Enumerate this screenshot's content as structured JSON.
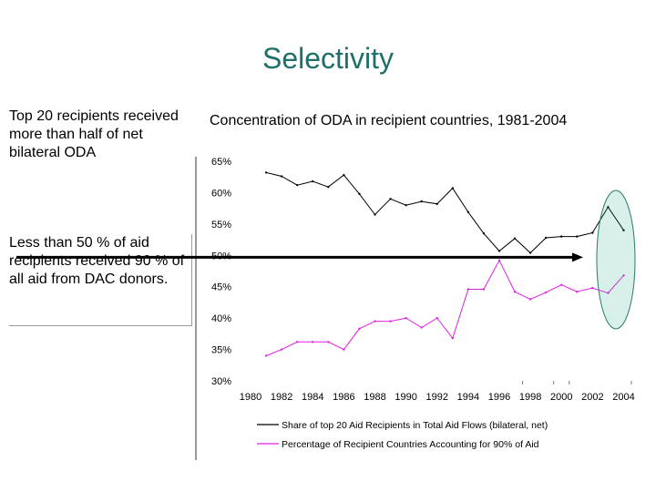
{
  "slide": {
    "title": "Selectivity",
    "box_top_text": "Top 20 recipients received more than half of net bilateral ODA",
    "box_bottom_text": "Less than 50 % of aid recipients received 90 % of all aid from DAC donors."
  },
  "chart_data": {
    "type": "line",
    "title": "Concentration of ODA in recipient countries, 1981-2004",
    "xlabel": "",
    "ylabel": "",
    "x": [
      1981,
      1982,
      1983,
      1984,
      1985,
      1986,
      1987,
      1988,
      1989,
      1990,
      1991,
      1992,
      1993,
      1994,
      1995,
      1996,
      1997,
      1998,
      1999,
      2000,
      2001,
      2002,
      2003,
      2004
    ],
    "xticks": [
      1980,
      1982,
      1984,
      1986,
      1988,
      1990,
      1992,
      1994,
      1996,
      1998,
      2000,
      2002,
      2004
    ],
    "xtick_labels": [
      "1980",
      "1982",
      "1984",
      "1986",
      "1988",
      "1990",
      "1992",
      "1994",
      "1996",
      "1998",
      "2000",
      "2002",
      "2004"
    ],
    "yticks": [
      30,
      35,
      40,
      45,
      50,
      55,
      60,
      65
    ],
    "ytick_labels": [
      "30%",
      "35%",
      "40%",
      "45%",
      "50%",
      "55%",
      "60%",
      "65%"
    ],
    "xlim": [
      1980,
      2004.5
    ],
    "ylim": [
      30,
      65
    ],
    "series": [
      {
        "name": "Share of top 20 Aid Recipients in Total Aid Flows (bilateral, net)",
        "color": "#000000",
        "values": [
          63.2,
          62.6,
          61.2,
          61.8,
          60.9,
          62.8,
          59.8,
          56.5,
          59.0,
          58.0,
          58.6,
          58.2,
          60.7,
          56.9,
          53.5,
          50.7,
          52.7,
          50.4,
          52.8,
          53.0,
          53.0,
          53.6,
          57.7,
          54.0
        ]
      },
      {
        "name": "Percentage of Recipient Countries Accounting for 90% of Aid",
        "color": "#e020e0",
        "values": [
          34.0,
          35.0,
          36.2,
          36.2,
          36.2,
          35.0,
          38.3,
          39.5,
          39.5,
          40.0,
          38.5,
          40.0,
          36.8,
          44.6,
          44.6,
          49.2,
          44.2,
          43.0,
          44.1,
          45.3,
          44.2,
          44.8,
          44.0,
          46.8
        ]
      }
    ],
    "legend_position": "bottom",
    "annotations": {
      "arrow": "horizontal arrow at 50%",
      "ellipse": "highlight around 2002-2004"
    }
  }
}
